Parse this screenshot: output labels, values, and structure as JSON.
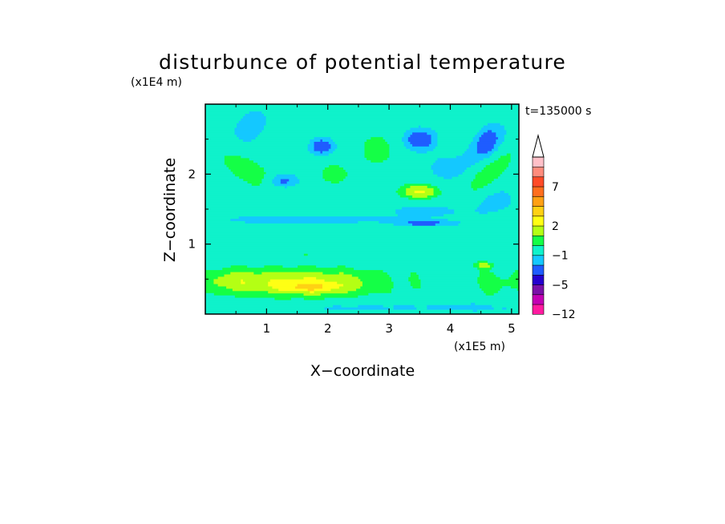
{
  "chart_data": {
    "type": "heatmap",
    "title": "disturbunce of potential temperature",
    "xlabel": "X−coordinate",
    "ylabel": "Z−coordinate",
    "x_scale_label": "(x1E5 m)",
    "y_scale_label": "(x1E4 m)",
    "time_label": "t=135000 s",
    "xlim": [
      0,
      5.12
    ],
    "ylim": [
      0,
      3.0
    ],
    "x_ticks": [
      1,
      2,
      3,
      4,
      5
    ],
    "y_ticks": [
      1,
      2
    ],
    "x_tick_labels": [
      "1",
      "2",
      "3",
      "4",
      "5"
    ],
    "y_tick_labels": [
      "1",
      "2"
    ],
    "colorbar": {
      "tick_labels": [
        "7",
        "2",
        "−1",
        "−5",
        "−12"
      ],
      "extend": "max",
      "colors": [
        "#ff1aa0",
        "#c400b4",
        "#7a10a8",
        "#2500cf",
        "#1f5cff",
        "#14c8ff",
        "#0ff2cb",
        "#14ff46",
        "#b4ff14",
        "#ffff14",
        "#ffd114",
        "#ffa014",
        "#ff6e1e",
        "#ff4b28",
        "#ff8c7d",
        "#ffc0c8"
      ]
    }
  }
}
